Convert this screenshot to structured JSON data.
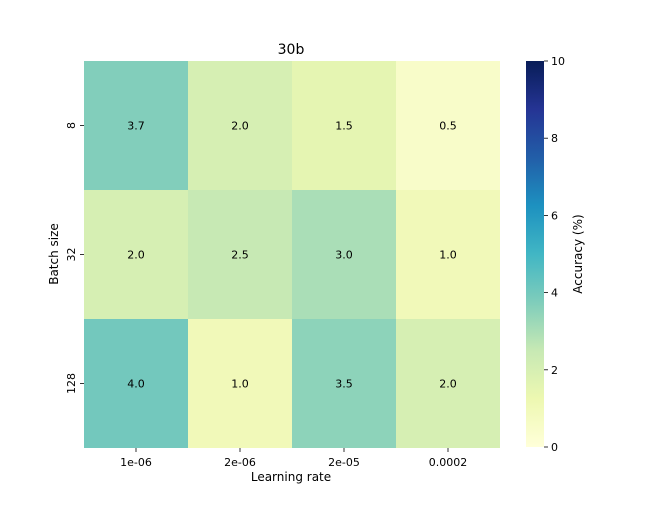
{
  "chart_data": {
    "type": "heatmap",
    "title": "30b",
    "xlabel": "Learning rate",
    "ylabel": "Batch size",
    "x_categories": [
      "1e-06",
      "2e-06",
      "2e-05",
      "0.0002"
    ],
    "y_categories": [
      "8",
      "32",
      "128"
    ],
    "values": [
      [
        3.7,
        2.0,
        1.5,
        0.5
      ],
      [
        2.0,
        2.5,
        3.0,
        1.0
      ],
      [
        4.0,
        1.0,
        3.5,
        2.0
      ]
    ],
    "value_labels": [
      [
        "3.7",
        "2.0",
        "1.5",
        "0.5"
      ],
      [
        "2.0",
        "2.5",
        "3.0",
        "1.0"
      ],
      [
        "4.0",
        "1.0",
        "3.5",
        "2.0"
      ]
    ],
    "colorbar": {
      "label": "Accuracy (%)",
      "range": [
        0,
        10
      ],
      "ticks": [
        "0",
        "2",
        "4",
        "6",
        "8",
        "10"
      ],
      "colormap": "YlGnBu"
    }
  }
}
